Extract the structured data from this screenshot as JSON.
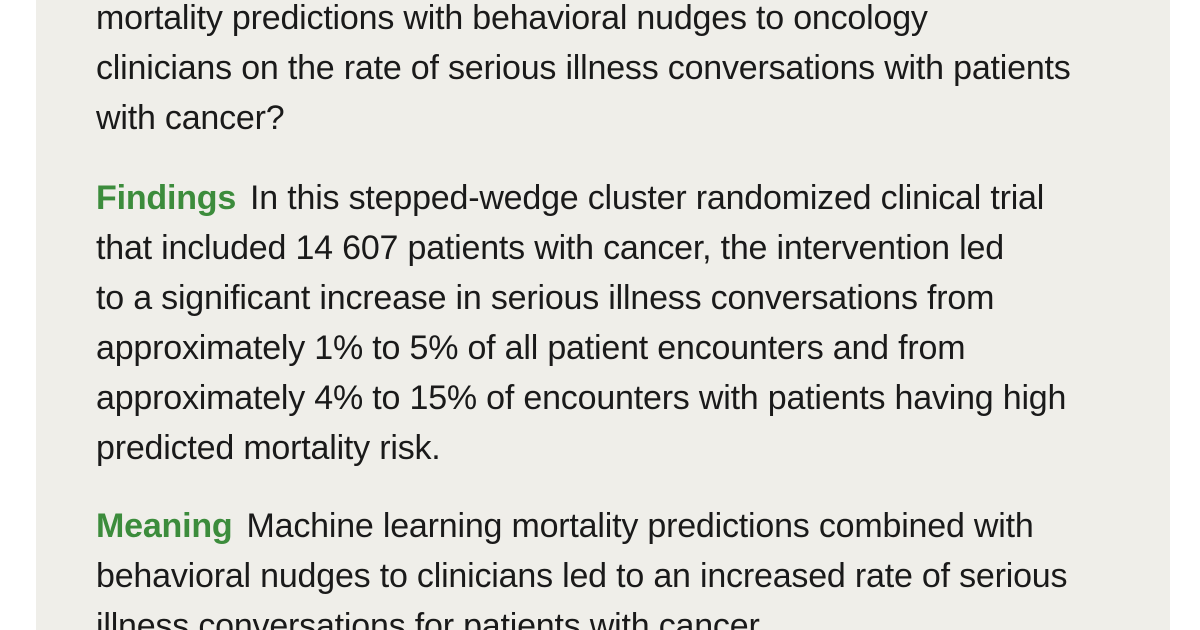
{
  "colors": {
    "panel_background": "#efeee9",
    "heading_green": "#3c8c3c",
    "body_text": "#1a1a1a"
  },
  "question": {
    "lines": [
      "mortality predictions with behavioral nudges to oncology",
      "clinicians on the rate of serious illness conversations with patients",
      "with cancer?"
    ]
  },
  "findings": {
    "heading": "Findings",
    "lines": [
      "In this stepped-wedge cluster randomized clinical trial",
      "that included 14 607 patients with cancer, the intervention led",
      "to a significant increase in serious illness conversations from",
      "approximately 1% to 5% of all patient encounters and from",
      "approximately 4% to 15% of encounters with patients having high",
      "predicted mortality risk."
    ]
  },
  "meaning": {
    "heading": "Meaning",
    "lines": [
      "Machine learning mortality predictions combined with",
      "behavioral nudges to clinicians led to an increased rate of serious",
      "illness conversations for patients with cancer."
    ]
  }
}
